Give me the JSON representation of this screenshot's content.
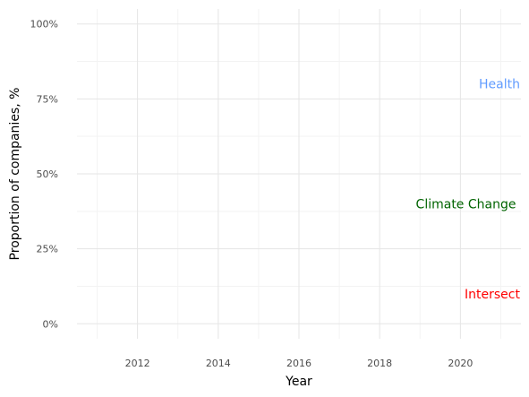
{
  "chart_data": {
    "type": "line",
    "title": "",
    "xlabel": "Year",
    "ylabel": "Proportion of companies, %",
    "xlim": [
      2010.5,
      2021.5
    ],
    "ylim": [
      -0.05,
      1.05
    ],
    "x_ticks": [
      2012,
      2014,
      2016,
      2018,
      2020
    ],
    "x_tick_labels": [
      "2012",
      "2014",
      "2016",
      "2018",
      "2020"
    ],
    "y_ticks": [
      0,
      0.25,
      0.5,
      0.75,
      1.0
    ],
    "y_tick_labels": [
      "0%",
      "25%",
      "50%",
      "75%",
      "100%"
    ],
    "grid": true,
    "series": [
      {
        "name": "Health",
        "color": "#619CFF",
        "label_x": 2021.5,
        "label_y": 0.8,
        "values": []
      },
      {
        "name": "Climate Change",
        "color": "#006400",
        "label_x": 2021.4,
        "label_y": 0.4,
        "values": []
      },
      {
        "name": "Intersect",
        "color": "#FF0000",
        "label_x": 2021.5,
        "label_y": 0.1,
        "values": []
      }
    ]
  }
}
